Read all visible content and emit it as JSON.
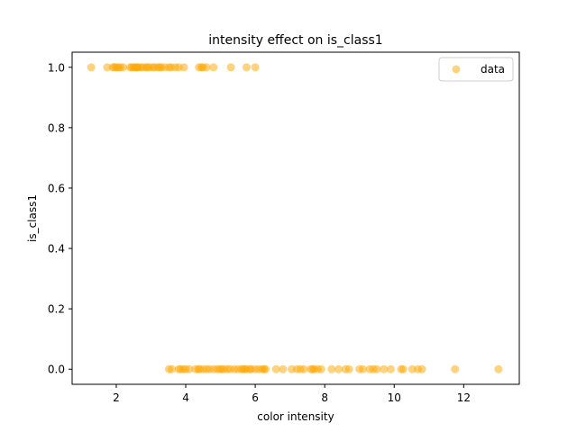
{
  "chart_data": {
    "type": "scatter",
    "title": "intensity effect on is_class1",
    "xlabel": "color intensity",
    "ylabel": "is_class1",
    "xlim": [
      0.73,
      13.6
    ],
    "ylim": [
      -0.05,
      1.05
    ],
    "xticks": [
      2,
      4,
      6,
      8,
      10,
      12
    ],
    "yticks": [
      0.0,
      0.2,
      0.4,
      0.6,
      0.8,
      1.0
    ],
    "xtick_labels": [
      "2",
      "4",
      "6",
      "8",
      "10",
      "12"
    ],
    "ytick_labels": [
      "0.0",
      "0.2",
      "0.4",
      "0.6",
      "0.8",
      "1.0"
    ],
    "grid": false,
    "legend": {
      "position": "top-right",
      "entries": [
        "data"
      ]
    },
    "series": [
      {
        "name": "data",
        "color": "#ffa500",
        "alpha": 0.5,
        "points": [
          [
            1.28,
            1
          ],
          [
            1.74,
            1
          ],
          [
            1.9,
            1
          ],
          [
            1.95,
            1
          ],
          [
            2.0,
            1
          ],
          [
            2.06,
            1
          ],
          [
            2.12,
            1
          ],
          [
            2.2,
            1
          ],
          [
            2.4,
            1
          ],
          [
            2.45,
            1
          ],
          [
            2.5,
            1
          ],
          [
            2.55,
            1
          ],
          [
            2.6,
            1
          ],
          [
            2.62,
            1
          ],
          [
            2.7,
            1
          ],
          [
            2.76,
            1
          ],
          [
            2.85,
            1
          ],
          [
            2.9,
            1
          ],
          [
            2.95,
            1
          ],
          [
            3.05,
            1
          ],
          [
            3.1,
            1
          ],
          [
            3.2,
            1
          ],
          [
            3.25,
            1
          ],
          [
            3.3,
            1
          ],
          [
            3.4,
            1
          ],
          [
            3.52,
            1
          ],
          [
            3.58,
            1
          ],
          [
            3.7,
            1
          ],
          [
            3.8,
            1
          ],
          [
            3.95,
            1
          ],
          [
            4.38,
            1
          ],
          [
            4.45,
            1
          ],
          [
            4.5,
            1
          ],
          [
            4.6,
            1
          ],
          [
            4.8,
            1
          ],
          [
            5.3,
            1
          ],
          [
            5.75,
            1
          ],
          [
            6.0,
            1
          ],
          [
            3.52,
            0
          ],
          [
            3.6,
            0
          ],
          [
            3.8,
            0
          ],
          [
            3.85,
            0
          ],
          [
            3.93,
            0
          ],
          [
            4.0,
            0
          ],
          [
            4.1,
            0
          ],
          [
            4.28,
            0
          ],
          [
            4.36,
            0
          ],
          [
            4.4,
            0
          ],
          [
            4.5,
            0
          ],
          [
            4.6,
            0
          ],
          [
            4.68,
            0
          ],
          [
            4.8,
            0
          ],
          [
            4.9,
            0
          ],
          [
            4.98,
            0
          ],
          [
            5.04,
            0
          ],
          [
            5.1,
            0
          ],
          [
            5.2,
            0
          ],
          [
            5.28,
            0
          ],
          [
            5.4,
            0
          ],
          [
            5.5,
            0
          ],
          [
            5.6,
            0
          ],
          [
            5.65,
            0
          ],
          [
            5.7,
            0
          ],
          [
            5.75,
            0
          ],
          [
            5.85,
            0
          ],
          [
            5.88,
            0
          ],
          [
            6.0,
            0
          ],
          [
            6.1,
            0
          ],
          [
            6.2,
            0
          ],
          [
            6.25,
            0
          ],
          [
            6.3,
            0
          ],
          [
            6.6,
            0
          ],
          [
            6.8,
            0
          ],
          [
            7.05,
            0
          ],
          [
            7.2,
            0
          ],
          [
            7.3,
            0
          ],
          [
            7.4,
            0
          ],
          [
            7.6,
            0
          ],
          [
            7.65,
            0
          ],
          [
            7.7,
            0
          ],
          [
            7.8,
            0
          ],
          [
            7.9,
            0
          ],
          [
            8.2,
            0
          ],
          [
            8.4,
            0
          ],
          [
            8.6,
            0
          ],
          [
            8.7,
            0
          ],
          [
            9.0,
            0
          ],
          [
            9.1,
            0
          ],
          [
            9.3,
            0
          ],
          [
            9.4,
            0
          ],
          [
            9.5,
            0
          ],
          [
            9.7,
            0
          ],
          [
            9.9,
            0
          ],
          [
            10.2,
            0
          ],
          [
            10.26,
            0
          ],
          [
            10.52,
            0
          ],
          [
            10.68,
            0
          ],
          [
            10.8,
            0
          ],
          [
            11.75,
            0
          ],
          [
            13.0,
            0
          ]
        ]
      }
    ]
  }
}
